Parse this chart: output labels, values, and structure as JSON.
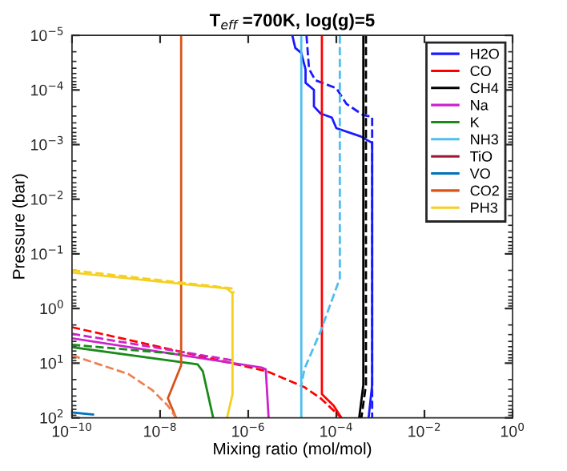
{
  "chart_data": {
    "type": "line",
    "title": "T$_{eff}$ =700K, log(g)=5",
    "xlabel": "Mixing ratio (mol/mol)",
    "ylabel": "Pressure (bar)",
    "log": "xy",
    "xlim": [
      1e-10,
      1
    ],
    "ylim": [
      100,
      1e-05
    ],
    "xticks": [
      {
        "value": 1e-10,
        "label": "10$^{−10}$"
      },
      {
        "value": 1e-08,
        "label": "10$^{−8}$"
      },
      {
        "value": 1e-06,
        "label": "10$^{−6}$"
      },
      {
        "value": 0.0001,
        "label": "10$^{−4}$"
      },
      {
        "value": 0.01,
        "label": "10$^{−2}$"
      },
      {
        "value": 1,
        "label": "10$^{0}$"
      }
    ],
    "yticks": [
      {
        "value": 1e-05,
        "label": "10$^{−5}$"
      },
      {
        "value": 0.0001,
        "label": "10$^{−4}$"
      },
      {
        "value": 0.001,
        "label": "10$^{−3}$"
      },
      {
        "value": 0.01,
        "label": "10$^{−2}$"
      },
      {
        "value": 0.1,
        "label": "10$^{−1}$"
      },
      {
        "value": 1,
        "label": "10$^{0}$"
      },
      {
        "value": 10,
        "label": "10$^{1}$"
      },
      {
        "value": 100,
        "label": "10$^{2}$"
      }
    ],
    "grid": false,
    "legend": "top right",
    "series": [
      {
        "name": "H2O",
        "color": "#1a1aff",
        "line_style": "solid",
        "x": [
          1e-05,
          1.17e-05,
          1.6e-05,
          2e-05,
          2e-05,
          3.1e-05,
          3.1e-05,
          4.4e-05,
          7.9e-05,
          0.0001,
          0.00036,
          0.00065,
          0.00065,
          0.00054
        ],
        "values": [
          1e-05,
          1.7e-05,
          2.1e-05,
          4.2e-05,
          7.4e-05,
          0.0001,
          0.0002,
          0.00027,
          0.00032,
          0.0005,
          0.00071,
          0.00093,
          25,
          100
        ]
      },
      {
        "color": "#1a1aff",
        "line_style": "dashed",
        "x": [
          2.1e-05,
          2.4e-05,
          3.3e-05,
          0.0001,
          0.00017,
          0.00041,
          0.00065,
          0.00065
        ],
        "values": [
          1e-05,
          4.1e-05,
          6.6e-05,
          9.3e-05,
          0.00018,
          0.00029,
          0.00031,
          100
        ]
      },
      {
        "name": "CO",
        "color": "#ff0000",
        "line_style": "solid",
        "x": [
          4.7e-05,
          4.7e-05,
          8.7e-05,
          0.00013
        ],
        "values": [
          1e-05,
          37,
          60,
          100
        ]
      },
      {
        "color": "#ff0000",
        "line_style": "dashed",
        "x": [
          1e-10,
          2.6e-06,
          1.9e-05,
          4.4e-05,
          0.00013
        ],
        "values": [
          2.2,
          14,
          27.6,
          44,
          100
        ]
      },
      {
        "name": "CH4",
        "color": "#000000",
        "line_style": "solid",
        "x": [
          0.00041,
          0.00041,
          0.00033
        ],
        "values": [
          1e-05,
          25,
          100
        ]
      },
      {
        "color": "#000000",
        "line_style": "dashed",
        "x": [
          0.00047,
          0.00047,
          0.00037
        ],
        "values": [
          1e-05,
          25,
          100
        ]
      },
      {
        "name": "Na",
        "color": "#cc22cc",
        "line_style": "solid",
        "x": [
          1e-10,
          2e-06,
          2.5e-06,
          2.9e-06
        ],
        "values": [
          3.5,
          12,
          13,
          100
        ]
      },
      {
        "color": "#cc22cc",
        "line_style": "dashed",
        "x": [
          1e-10,
          4.5e-07
        ],
        "values": [
          2.9,
          8.9
        ]
      },
      {
        "name": "K",
        "color": "#1a8a1a",
        "line_style": "solid",
        "x": [
          1e-10,
          7.1e-08,
          9.3e-08,
          1.6e-07
        ],
        "values": [
          5.1,
          10.5,
          14,
          100
        ]
      },
      {
        "color": "#1a8a1a",
        "line_style": "dashed",
        "x": [
          1e-10,
          3.1e-08
        ],
        "values": [
          4.6,
          6.9
        ]
      },
      {
        "name": "NH3",
        "color": "#4dbeee",
        "line_style": "solid",
        "x": [
          1.6e-05,
          1.6e-05
        ],
        "values": [
          1e-05,
          100
        ]
      },
      {
        "color": "#4dbeee",
        "line_style": "dashed",
        "x": [
          0.00012,
          0.00012,
          4.4e-05,
          1.9e-05,
          1.6e-05
        ],
        "values": [
          1e-05,
          0.28,
          2.6,
          12.6,
          25
        ]
      },
      {
        "name": "TiO",
        "color": "#a2142f",
        "line_style": "solid"
      },
      {
        "name": "VO",
        "color": "#0072bd",
        "line_style": "solid",
        "x": [
          1e-10,
          3e-10
        ],
        "values": [
          80,
          87
        ]
      },
      {
        "name": "CO2",
        "color": "#d95319",
        "line_style": "solid",
        "x": [
          3e-08,
          3e-08,
          1.5e-08,
          2.3e-08
        ],
        "values": [
          1e-05,
          11,
          44,
          100
        ]
      },
      {
        "color": "#f08050",
        "line_style": "dashed",
        "x": [
          1e-10,
          1.9e-09,
          6.6e-09,
          1.5e-08,
          2.3e-08
        ],
        "values": [
          7.2,
          15.8,
          31,
          60,
          100
        ]
      },
      {
        "name": "PH3",
        "color": "#f5d020",
        "line_style": "solid",
        "x": [
          1e-10,
          3.3e-07,
          4.4e-07,
          4.4e-07,
          3.3e-07
        ],
        "values": [
          0.22,
          0.43,
          0.53,
          37,
          100
        ]
      },
      {
        "color": "#f5d020",
        "line_style": "dashed",
        "x": [
          1e-10,
          4.6e-07,
          4.6e-07
        ],
        "values": [
          0.2,
          0.43,
          0.53
        ]
      }
    ]
  }
}
